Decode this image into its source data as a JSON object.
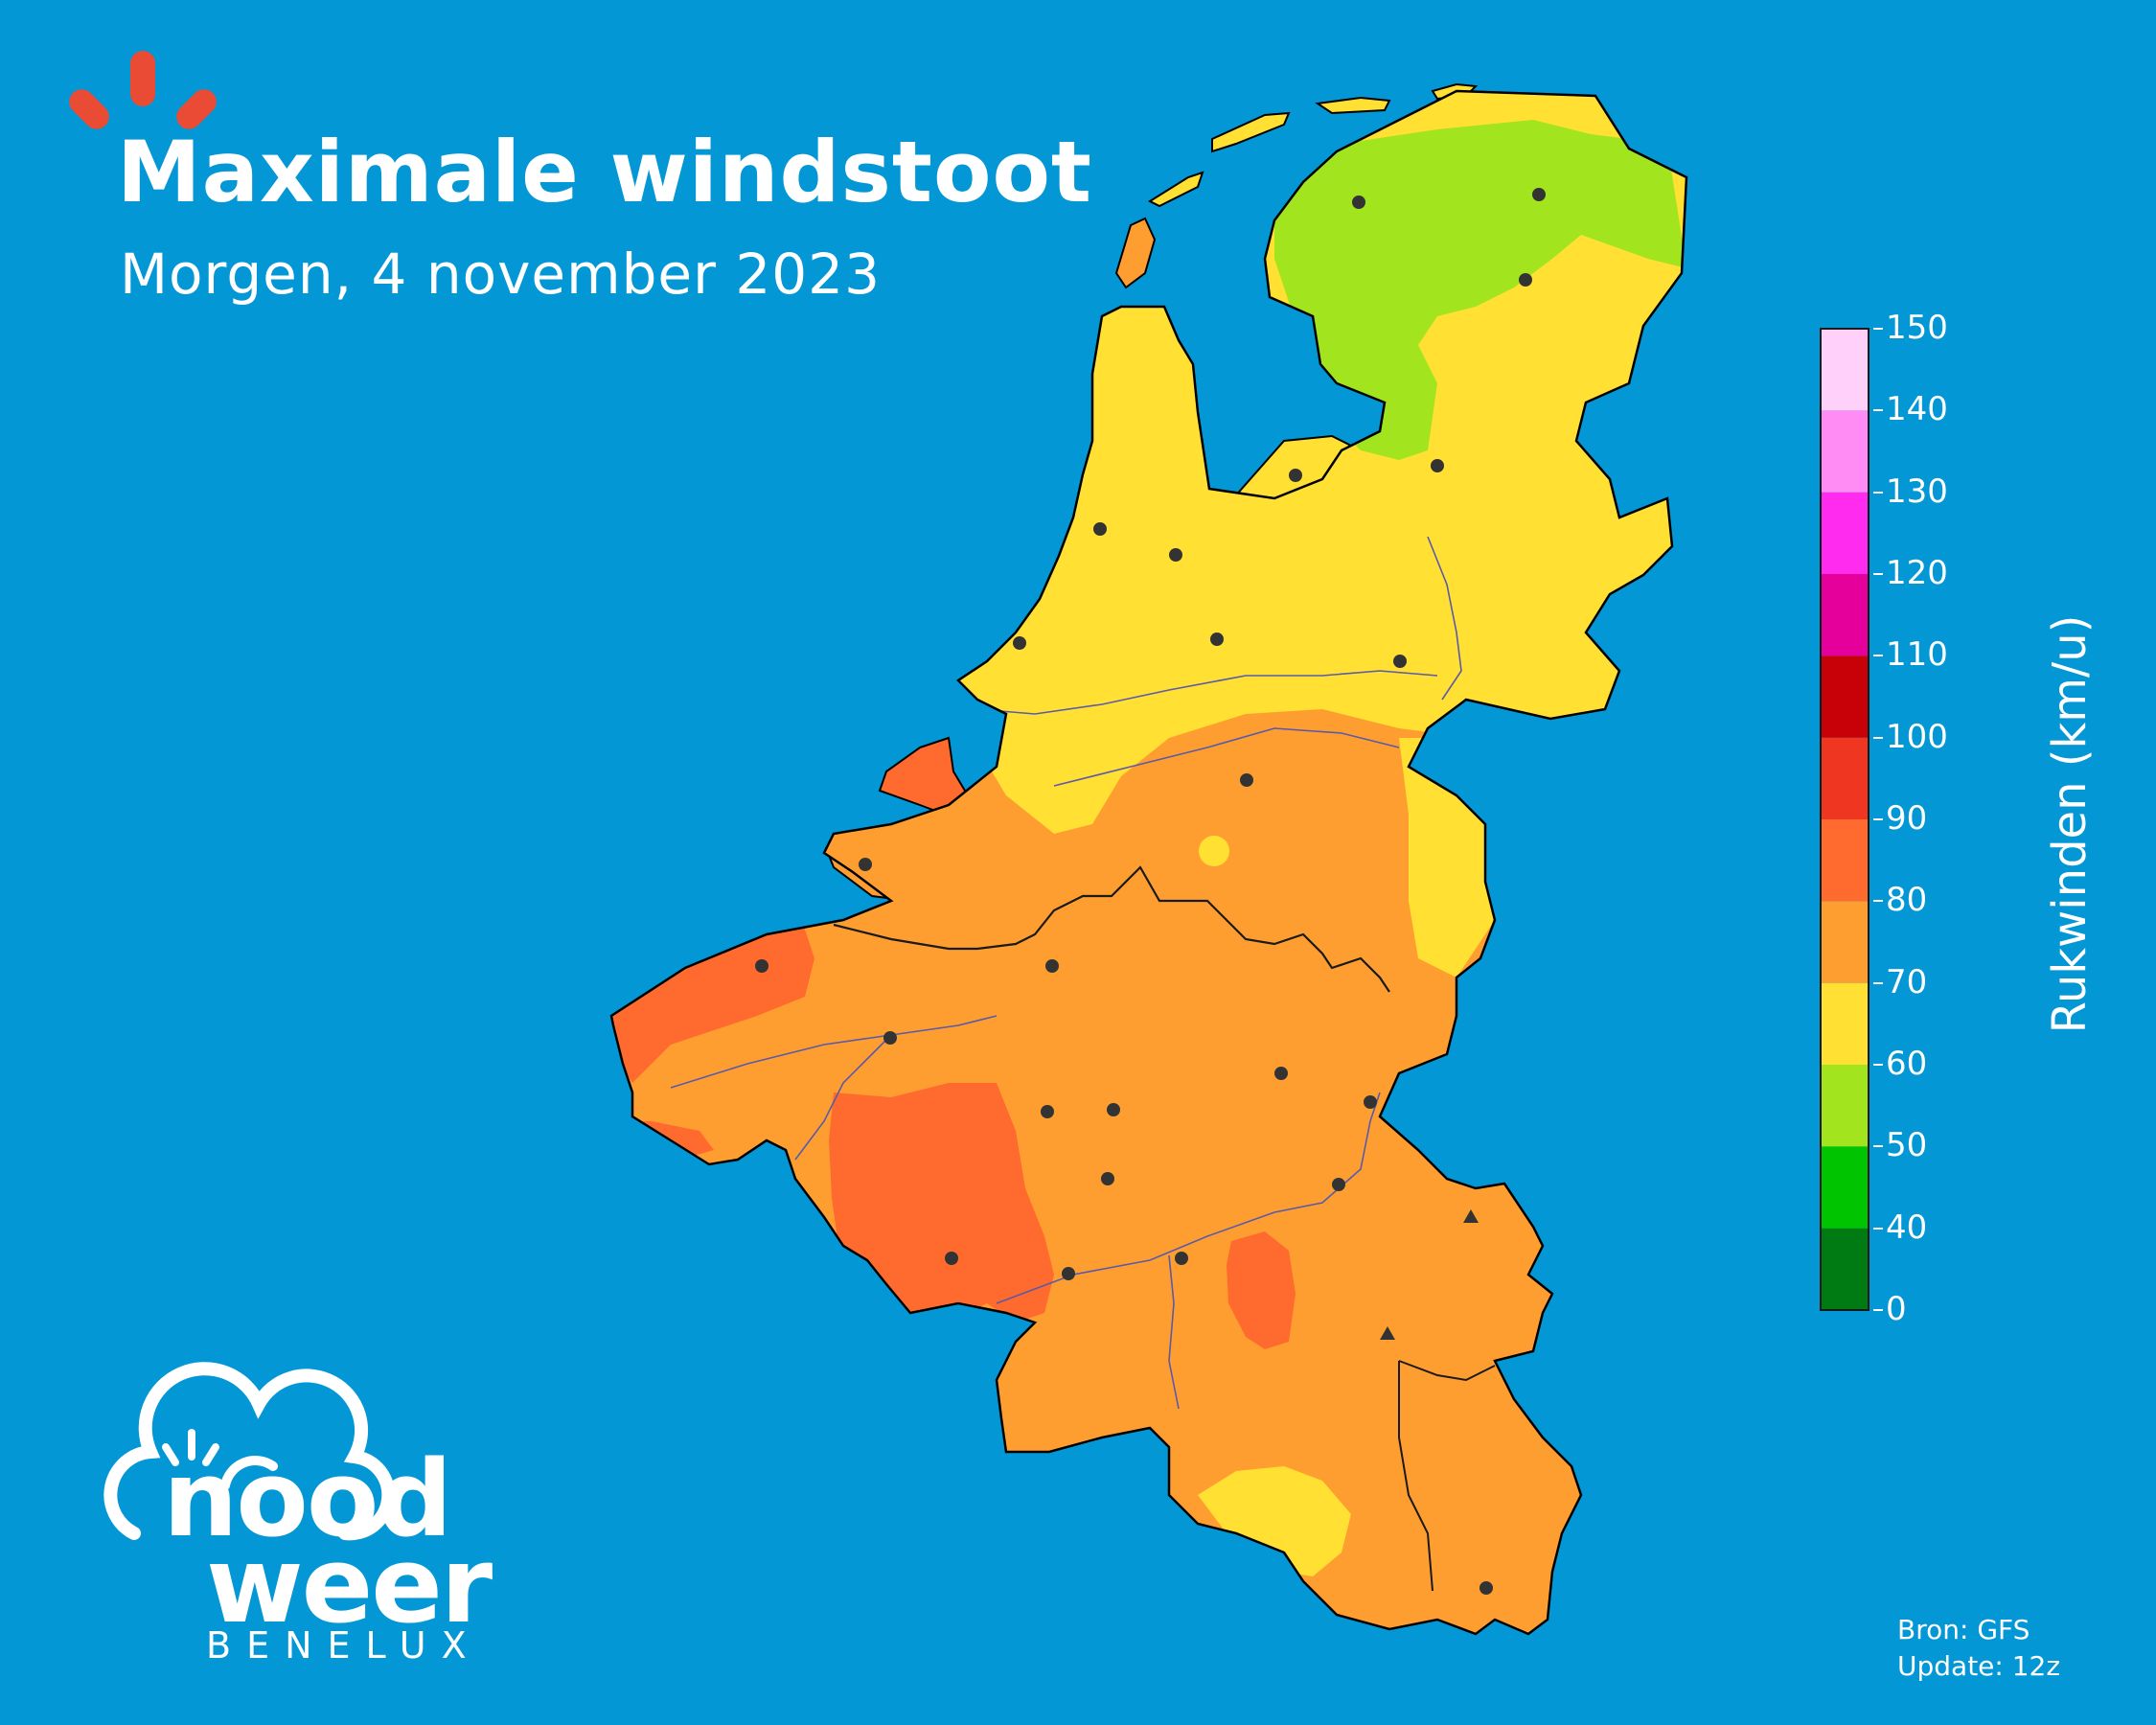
{
  "header": {
    "title": "Maximale windstoot",
    "subtitle": "Morgen, 4 november 2023"
  },
  "colorbar": {
    "title": "Rukwinden (km/u)",
    "ticks": [
      "0",
      "40",
      "50",
      "60",
      "70",
      "80",
      "90",
      "100",
      "110",
      "120",
      "130",
      "140",
      "150"
    ],
    "colors": [
      "#007a12",
      "#00c400",
      "#a2e51e",
      "#ffe033",
      "#ff9e30",
      "#ff6a2e",
      "#ee3620",
      "#c80008",
      "#e6009b",
      "#ff2cf0",
      "#ff8cf5",
      "#ffd0fa"
    ]
  },
  "source": {
    "line1": "Bron: GFS",
    "line2": "Update: 12z"
  },
  "brand": {
    "line1": "nood",
    "line2": "weer",
    "line3": "BENELUX"
  },
  "colors": {
    "sea": "#0397d6",
    "green_zone": "#a2e51e",
    "yellow_zone": "#ffe033",
    "orange_zone": "#ff9e30",
    "dark_orange_zone": "#ff6a2e",
    "logo_accent": "#e94b35"
  }
}
